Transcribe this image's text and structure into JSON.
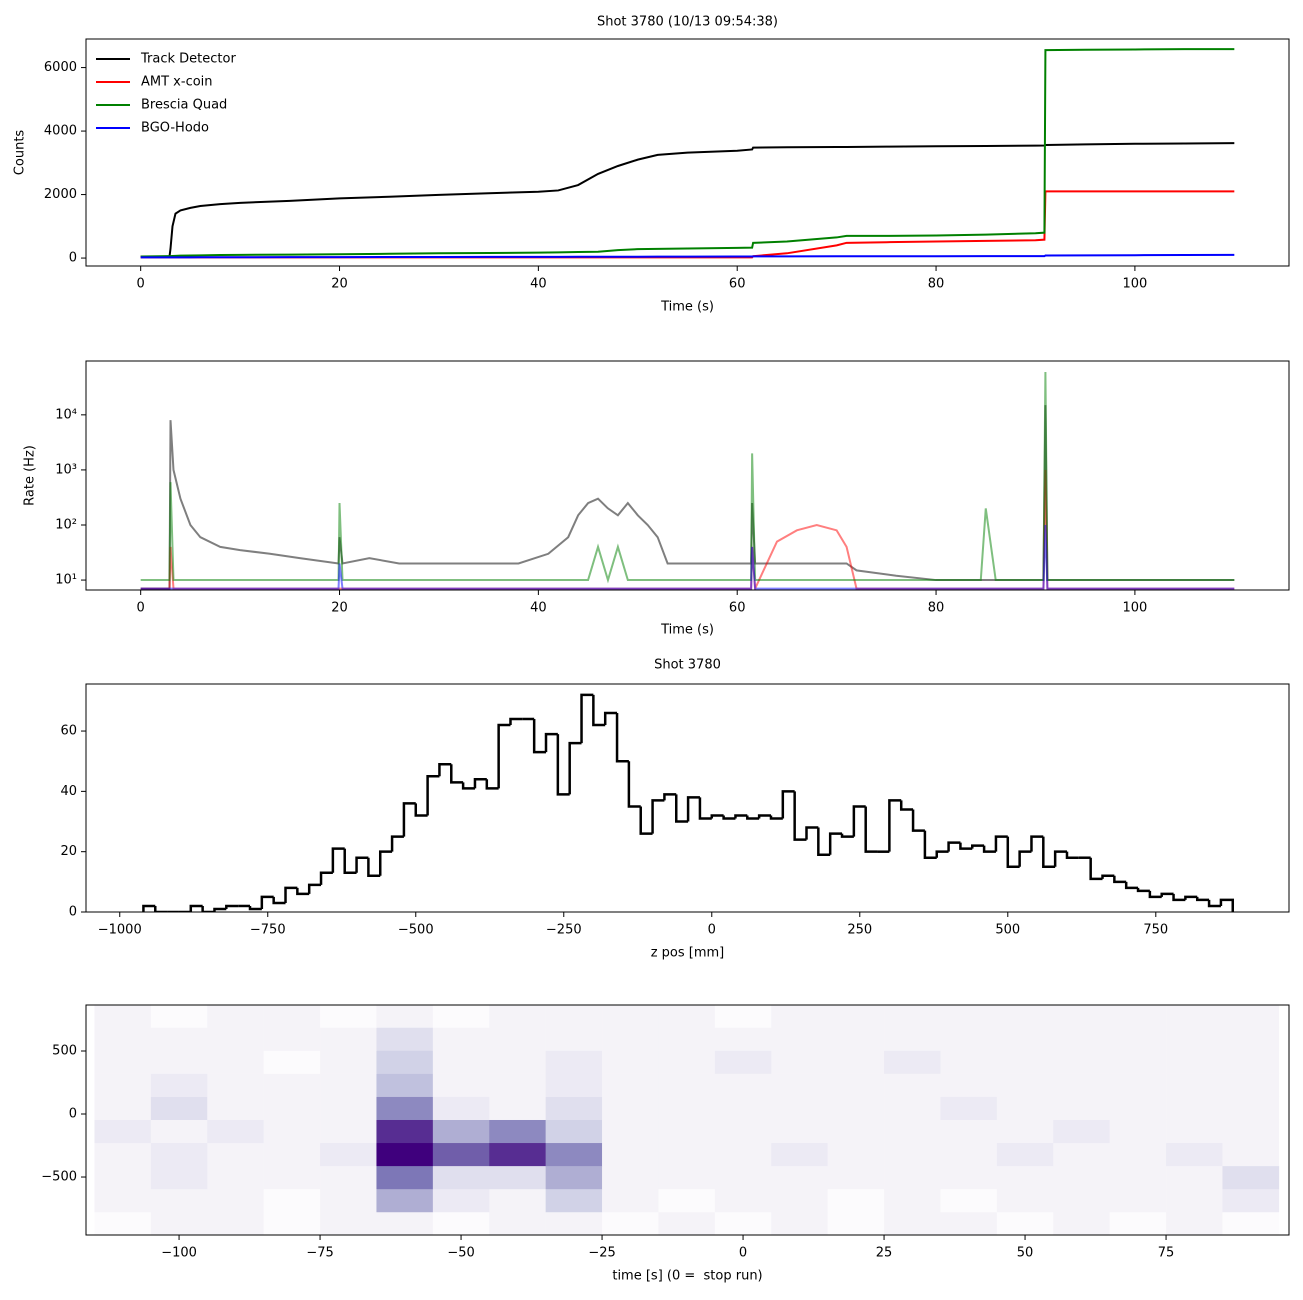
{
  "chart_data": [
    {
      "type": "line",
      "title": "Shot 3780 (10/13 09:54:38)",
      "x_label": "Time (s)",
      "y_label": "Counts",
      "xlim": [
        -5.5,
        115.5
      ],
      "xticks": [
        0,
        20,
        40,
        60,
        80,
        100
      ],
      "ylim": [
        -250,
        6900
      ],
      "yticks": [
        0,
        2000,
        4000,
        6000
      ],
      "legend": "upper left",
      "x": [
        0,
        2.9,
        3,
        3.2,
        3.5,
        4,
        5,
        6,
        8,
        10,
        15,
        20,
        25,
        30,
        35,
        40,
        42,
        44,
        46,
        48,
        50,
        52,
        55,
        60,
        61.5,
        61.6,
        65,
        70,
        71,
        75,
        80,
        85,
        90,
        90.9,
        91,
        95,
        100,
        105,
        110
      ],
      "series": [
        {
          "name": "Track Detector",
          "color": "#000000",
          "values": [
            50,
            50,
            300,
            1000,
            1400,
            1500,
            1580,
            1640,
            1700,
            1740,
            1800,
            1880,
            1930,
            1990,
            2040,
            2090,
            2130,
            2300,
            2650,
            2900,
            3100,
            3250,
            3320,
            3380,
            3420,
            3480,
            3490,
            3500,
            3500,
            3510,
            3520,
            3530,
            3540,
            3545,
            3560,
            3580,
            3600,
            3610,
            3620
          ]
        },
        {
          "name": "AMT x-coin",
          "color": "#ff0000",
          "values": [
            20,
            20,
            20,
            20,
            20,
            20,
            20,
            20,
            20,
            20,
            20,
            20,
            20,
            20,
            20,
            20,
            20,
            20,
            20,
            20,
            20,
            20,
            20,
            20,
            20,
            60,
            150,
            400,
            480,
            500,
            520,
            540,
            560,
            580,
            2100,
            2100,
            2100,
            2100,
            2100
          ]
        },
        {
          "name": "Brescia Quad",
          "color": "#008000",
          "values": [
            50,
            60,
            60,
            65,
            70,
            75,
            80,
            85,
            95,
            100,
            110,
            120,
            135,
            150,
            160,
            170,
            180,
            190,
            200,
            250,
            280,
            290,
            300,
            320,
            330,
            480,
            520,
            650,
            700,
            700,
            710,
            740,
            780,
            800,
            6550,
            6560,
            6570,
            6580,
            6580
          ]
        },
        {
          "name": "BGO-Hodo",
          "color": "#0000ff",
          "values": [
            20,
            20,
            22,
            22,
            22,
            22,
            23,
            24,
            25,
            26,
            28,
            30,
            32,
            34,
            36,
            38,
            39,
            40,
            41,
            42,
            43,
            44,
            45,
            48,
            50,
            52,
            54,
            56,
            57,
            58,
            59,
            60,
            60,
            60,
            80,
            85,
            90,
            95,
            100
          ]
        }
      ]
    },
    {
      "type": "line",
      "log_y": true,
      "alpha": 0.5,
      "x_label": "Time (s)",
      "y_label": "Rate (Hz)",
      "xlim": [
        -5.5,
        115.5
      ],
      "xticks": [
        0,
        20,
        40,
        60,
        80,
        100
      ],
      "ylim": [
        6.6,
        95000
      ],
      "yticks": [
        {
          "value": 10,
          "label": "10¹"
        },
        {
          "value": 100,
          "label": "10²"
        },
        {
          "value": 1000,
          "label": "10³"
        },
        {
          "value": 10000,
          "label": "10⁴"
        }
      ],
      "x": [
        0,
        2,
        2.9,
        3,
        3.3,
        4,
        5,
        6,
        8,
        10,
        13,
        16,
        19.9,
        20,
        20.3,
        23,
        26,
        30,
        34,
        38,
        41,
        43,
        44,
        45,
        46,
        47,
        48,
        49,
        50,
        51,
        52,
        53,
        56,
        60,
        61.4,
        61.5,
        61.8,
        64,
        66,
        68,
        70,
        71,
        72,
        76,
        80,
        84.5,
        85,
        86,
        90.8,
        91,
        91.2,
        95,
        100,
        105,
        110
      ],
      "series": [
        {
          "color": "#000000",
          "values": [
            7,
            7,
            7,
            8000,
            1000,
            300,
            100,
            60,
            40,
            35,
            30,
            25,
            20,
            60,
            20,
            25,
            20,
            20,
            20,
            20,
            30,
            60,
            150,
            250,
            300,
            200,
            150,
            250,
            150,
            100,
            60,
            20,
            20,
            20,
            20,
            250,
            20,
            20,
            20,
            20,
            20,
            20,
            15,
            12,
            10,
            10,
            10,
            10,
            10,
            15000,
            10,
            10,
            10,
            10,
            10
          ]
        },
        {
          "color": "#ff0000",
          "values": [
            7,
            7,
            7,
            40,
            7,
            7,
            7,
            7,
            7,
            7,
            7,
            7,
            7,
            7,
            7,
            7,
            7,
            7,
            7,
            7,
            7,
            7,
            7,
            7,
            7,
            7,
            7,
            7,
            7,
            7,
            7,
            7,
            7,
            7,
            7,
            40,
            7,
            50,
            80,
            100,
            80,
            40,
            7,
            7,
            7,
            7,
            7,
            7,
            7,
            1000,
            7,
            7,
            7,
            7,
            7
          ]
        },
        {
          "color": "#008000",
          "values": [
            10,
            10,
            10,
            600,
            10,
            10,
            10,
            10,
            10,
            10,
            10,
            10,
            10,
            250,
            10,
            10,
            10,
            10,
            10,
            10,
            10,
            10,
            10,
            10,
            40,
            10,
            40,
            10,
            10,
            10,
            10,
            10,
            10,
            10,
            10,
            2000,
            10,
            10,
            10,
            10,
            10,
            10,
            10,
            10,
            10,
            10,
            200,
            10,
            10,
            60000,
            10,
            10,
            10,
            10,
            10
          ]
        },
        {
          "color": "#0000ff",
          "values": [
            7,
            7,
            7,
            7,
            7,
            7,
            7,
            7,
            7,
            7,
            7,
            7,
            7,
            20,
            7,
            7,
            7,
            7,
            7,
            7,
            7,
            7,
            7,
            7,
            7,
            7,
            7,
            7,
            7,
            7,
            7,
            7,
            7,
            7,
            7,
            40,
            7,
            7,
            7,
            7,
            7,
            7,
            7,
            7,
            7,
            7,
            7,
            7,
            7,
            100,
            7,
            7,
            7,
            7,
            7
          ]
        }
      ]
    },
    {
      "type": "histogram",
      "title": "Shot 3780",
      "x_label": "z pos [mm]",
      "color": "#000000",
      "xlim": [
        -1057,
        975
      ],
      "xticks": [
        {
          "value": -1000,
          "label": "−1000"
        },
        {
          "value": -750,
          "label": "−750"
        },
        {
          "value": -500,
          "label": "−500"
        },
        {
          "value": -250,
          "label": "−250"
        },
        0,
        250,
        500,
        750
      ],
      "ylim": [
        0,
        75.6
      ],
      "yticks": [
        0,
        20,
        40,
        60
      ],
      "bins": [
        -960,
        -940,
        -920,
        -900,
        -880,
        -860,
        -840,
        -820,
        -800,
        -780,
        -760,
        -740,
        -720,
        -700,
        -680,
        -660,
        -640,
        -620,
        -600,
        -580,
        -560,
        -540,
        -520,
        -500,
        -480,
        -460,
        -440,
        -420,
        -400,
        -380,
        -360,
        -340,
        -320,
        -300,
        -280,
        -260,
        -240,
        -220,
        -200,
        -180,
        -160,
        -140,
        -120,
        -100,
        -80,
        -60,
        -40,
        -20,
        0,
        20,
        40,
        60,
        80,
        100,
        120,
        140,
        160,
        180,
        200,
        220,
        240,
        260,
        280,
        300,
        320,
        340,
        360,
        380,
        400,
        420,
        440,
        460,
        480,
        500,
        520,
        540,
        560,
        580,
        600,
        620,
        640,
        660,
        680,
        700,
        720,
        740,
        760,
        780,
        800,
        820,
        840,
        860,
        880
      ],
      "values": [
        2,
        0,
        0,
        0,
        2,
        0,
        1,
        2,
        2,
        1,
        5,
        3,
        8,
        6,
        9,
        13,
        21,
        13,
        18,
        12,
        20,
        25,
        36,
        32,
        45,
        49,
        43,
        41,
        44,
        41,
        62,
        64,
        64,
        53,
        59,
        39,
        56,
        72,
        62,
        66,
        50,
        35,
        26,
        37,
        39,
        30,
        38,
        31,
        32,
        31,
        32,
        31,
        32,
        31,
        40,
        24,
        28,
        19,
        26,
        25,
        35,
        20,
        20,
        37,
        34,
        27,
        18,
        20,
        23,
        21,
        22,
        20,
        25,
        15,
        20,
        25,
        15,
        20,
        18,
        18,
        11,
        12,
        10,
        8,
        7,
        5,
        6,
        4,
        5,
        4,
        2,
        4
      ]
    },
    {
      "type": "heatmap",
      "x_label": "time [s] (0 =  stop run)",
      "colormap": "Purples",
      "xlim": [
        -116.5,
        96.8
      ],
      "xticks": [
        {
          "value": -100,
          "label": "−100"
        },
        {
          "value": -75,
          "label": "−75"
        },
        {
          "value": -50,
          "label": "−50"
        },
        {
          "value": -25,
          "label": "−25"
        },
        0,
        25,
        50,
        75
      ],
      "ylim": [
        -960,
        865
      ],
      "yticks": [
        {
          "value": -500,
          "label": "−500"
        },
        0,
        500
      ],
      "x_edges": [
        -115,
        -105,
        -95,
        -85,
        -75,
        -65,
        -55,
        -45,
        -35,
        -25,
        -15,
        -5,
        5,
        15,
        25,
        35,
        45,
        55,
        65,
        75,
        85,
        95
      ],
      "y_edges": [
        -960,
        -777,
        -594,
        -411,
        -228,
        -45,
        138,
        321,
        504,
        687,
        870
      ],
      "z": [
        [
          0,
          1,
          1,
          0,
          1,
          1,
          0,
          1,
          1,
          0,
          1,
          0,
          1,
          0,
          1,
          1,
          0,
          1,
          0,
          1,
          0
        ],
        [
          1,
          1,
          1,
          0,
          1,
          6,
          2,
          1,
          4,
          1,
          0,
          1,
          1,
          0,
          1,
          0,
          1,
          1,
          1,
          1,
          2
        ],
        [
          1,
          2,
          1,
          1,
          1,
          9,
          3,
          3,
          6,
          1,
          1,
          1,
          1,
          1,
          1,
          1,
          1,
          1,
          1,
          1,
          3
        ],
        [
          1,
          2,
          1,
          1,
          2,
          14,
          10,
          12,
          8,
          1,
          1,
          1,
          2,
          1,
          1,
          1,
          2,
          1,
          1,
          2,
          1
        ],
        [
          2,
          1,
          2,
          1,
          1,
          12,
          6,
          8,
          4,
          1,
          1,
          1,
          1,
          1,
          1,
          1,
          1,
          2,
          1,
          1,
          1
        ],
        [
          1,
          3,
          1,
          1,
          1,
          8,
          2,
          1,
          3,
          1,
          1,
          1,
          1,
          1,
          1,
          2,
          1,
          1,
          1,
          1,
          1
        ],
        [
          1,
          2,
          1,
          1,
          1,
          5,
          1,
          1,
          2,
          1,
          1,
          1,
          1,
          1,
          1,
          1,
          1,
          1,
          1,
          1,
          1
        ],
        [
          1,
          1,
          1,
          0,
          1,
          4,
          1,
          1,
          2,
          1,
          1,
          2,
          1,
          1,
          2,
          1,
          1,
          1,
          1,
          1,
          1
        ],
        [
          1,
          1,
          1,
          1,
          1,
          3,
          1,
          1,
          1,
          1,
          1,
          1,
          1,
          1,
          1,
          1,
          1,
          1,
          1,
          1,
          1
        ],
        [
          1,
          0,
          1,
          1,
          0,
          1,
          0,
          1,
          1,
          1,
          1,
          0,
          1,
          1,
          1,
          1,
          1,
          1,
          1,
          1,
          1
        ]
      ]
    }
  ]
}
